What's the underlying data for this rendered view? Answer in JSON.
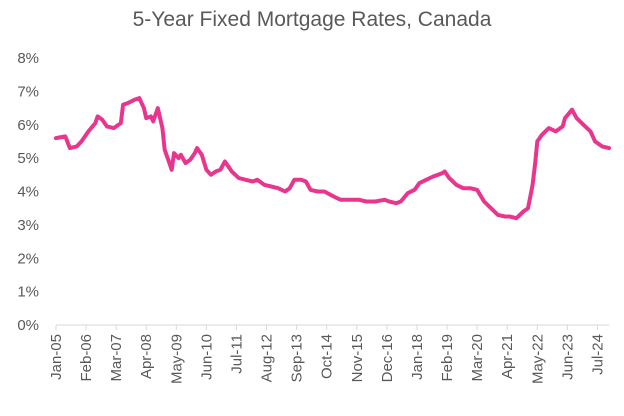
{
  "chart_data": {
    "type": "line",
    "title": "5-Year Fixed Mortgage Rates, Canada",
    "xlabel": "",
    "ylabel": "",
    "ylim": [
      0,
      8
    ],
    "y_ticks": [
      "0%",
      "1%",
      "2%",
      "3%",
      "4%",
      "5%",
      "6%",
      "7%",
      "8%"
    ],
    "x_range": [
      "2005-01",
      "2024-12"
    ],
    "x_ticks": [
      {
        "label": "Jan-05",
        "date": "2005-01"
      },
      {
        "label": "Feb-06",
        "date": "2006-02"
      },
      {
        "label": "Mar-07",
        "date": "2007-03"
      },
      {
        "label": "Apr-08",
        "date": "2008-04"
      },
      {
        "label": "May-09",
        "date": "2009-05"
      },
      {
        "label": "Jun-10",
        "date": "2010-06"
      },
      {
        "label": "Jul-11",
        "date": "2011-07"
      },
      {
        "label": "Aug-12",
        "date": "2012-08"
      },
      {
        "label": "Sep-13",
        "date": "2013-09"
      },
      {
        "label": "Oct-14",
        "date": "2014-10"
      },
      {
        "label": "Nov-15",
        "date": "2015-11"
      },
      {
        "label": "Dec-16",
        "date": "2016-12"
      },
      {
        "label": "Jan-18",
        "date": "2018-01"
      },
      {
        "label": "Feb-19",
        "date": "2019-02"
      },
      {
        "label": "Mar-20",
        "date": "2020-03"
      },
      {
        "label": "Apr-21",
        "date": "2021-04"
      },
      {
        "label": "May-22",
        "date": "2022-05"
      },
      {
        "label": "Jun-23",
        "date": "2023-06"
      },
      {
        "label": "Jul-24",
        "date": "2024-07"
      }
    ],
    "grid": false,
    "legend": "none",
    "series": [
      {
        "color": "#E8368F",
        "points": [
          [
            "2005-01",
            5.6
          ],
          [
            "2005-05",
            5.65
          ],
          [
            "2005-07",
            5.3
          ],
          [
            "2005-10",
            5.35
          ],
          [
            "2005-12",
            5.5
          ],
          [
            "2006-03",
            5.8
          ],
          [
            "2006-06",
            6.05
          ],
          [
            "2006-07",
            6.25
          ],
          [
            "2006-09",
            6.15
          ],
          [
            "2006-11",
            5.95
          ],
          [
            "2007-02",
            5.9
          ],
          [
            "2007-05",
            6.05
          ],
          [
            "2007-06",
            6.6
          ],
          [
            "2007-08",
            6.65
          ],
          [
            "2007-11",
            6.75
          ],
          [
            "2008-01",
            6.8
          ],
          [
            "2008-03",
            6.5
          ],
          [
            "2008-04",
            6.2
          ],
          [
            "2008-06",
            6.25
          ],
          [
            "2008-07",
            6.1
          ],
          [
            "2008-09",
            6.5
          ],
          [
            "2008-11",
            5.9
          ],
          [
            "2008-12",
            5.25
          ],
          [
            "2009-02",
            4.85
          ],
          [
            "2009-03",
            4.65
          ],
          [
            "2009-04",
            5.15
          ],
          [
            "2009-06",
            5.0
          ],
          [
            "2009-07",
            5.1
          ],
          [
            "2009-09",
            4.85
          ],
          [
            "2009-11",
            4.95
          ],
          [
            "2010-01",
            5.15
          ],
          [
            "2010-02",
            5.3
          ],
          [
            "2010-04",
            5.1
          ],
          [
            "2010-06",
            4.65
          ],
          [
            "2010-08",
            4.5
          ],
          [
            "2010-10",
            4.6
          ],
          [
            "2010-12",
            4.65
          ],
          [
            "2011-02",
            4.9
          ],
          [
            "2011-03",
            4.8
          ],
          [
            "2011-05",
            4.6
          ],
          [
            "2011-08",
            4.4
          ],
          [
            "2011-11",
            4.35
          ],
          [
            "2012-02",
            4.3
          ],
          [
            "2012-04",
            4.35
          ],
          [
            "2012-07",
            4.2
          ],
          [
            "2012-10",
            4.15
          ],
          [
            "2013-01",
            4.1
          ],
          [
            "2013-04",
            4.0
          ],
          [
            "2013-06",
            4.1
          ],
          [
            "2013-08",
            4.35
          ],
          [
            "2013-11",
            4.35
          ],
          [
            "2014-01",
            4.3
          ],
          [
            "2014-03",
            4.05
          ],
          [
            "2014-06",
            4.0
          ],
          [
            "2014-09",
            4.0
          ],
          [
            "2015-01",
            3.85
          ],
          [
            "2015-04",
            3.75
          ],
          [
            "2015-08",
            3.75
          ],
          [
            "2015-12",
            3.75
          ],
          [
            "2016-03",
            3.7
          ],
          [
            "2016-07",
            3.7
          ],
          [
            "2016-11",
            3.75
          ],
          [
            "2017-01",
            3.7
          ],
          [
            "2017-04",
            3.65
          ],
          [
            "2017-06",
            3.7
          ],
          [
            "2017-09",
            3.95
          ],
          [
            "2017-12",
            4.05
          ],
          [
            "2018-02",
            4.25
          ],
          [
            "2018-05",
            4.35
          ],
          [
            "2018-08",
            4.45
          ],
          [
            "2018-12",
            4.55
          ],
          [
            "2019-01",
            4.6
          ],
          [
            "2019-03",
            4.4
          ],
          [
            "2019-06",
            4.2
          ],
          [
            "2019-09",
            4.1
          ],
          [
            "2019-12",
            4.1
          ],
          [
            "2020-03",
            4.05
          ],
          [
            "2020-06",
            3.7
          ],
          [
            "2020-09",
            3.5
          ],
          [
            "2020-12",
            3.3
          ],
          [
            "2021-03",
            3.25
          ],
          [
            "2021-05",
            3.25
          ],
          [
            "2021-08",
            3.2
          ],
          [
            "2021-11",
            3.4
          ],
          [
            "2022-01",
            3.5
          ],
          [
            "2022-03",
            4.2
          ],
          [
            "2022-04",
            4.8
          ],
          [
            "2022-05",
            5.5
          ],
          [
            "2022-07",
            5.7
          ],
          [
            "2022-10",
            5.9
          ],
          [
            "2023-01",
            5.8
          ],
          [
            "2023-04",
            5.95
          ],
          [
            "2023-05",
            6.2
          ],
          [
            "2023-08",
            6.45
          ],
          [
            "2023-10",
            6.2
          ],
          [
            "2024-01",
            6.0
          ],
          [
            "2024-04",
            5.8
          ],
          [
            "2024-06",
            5.5
          ],
          [
            "2024-09",
            5.35
          ],
          [
            "2024-12",
            5.3
          ]
        ]
      }
    ]
  }
}
